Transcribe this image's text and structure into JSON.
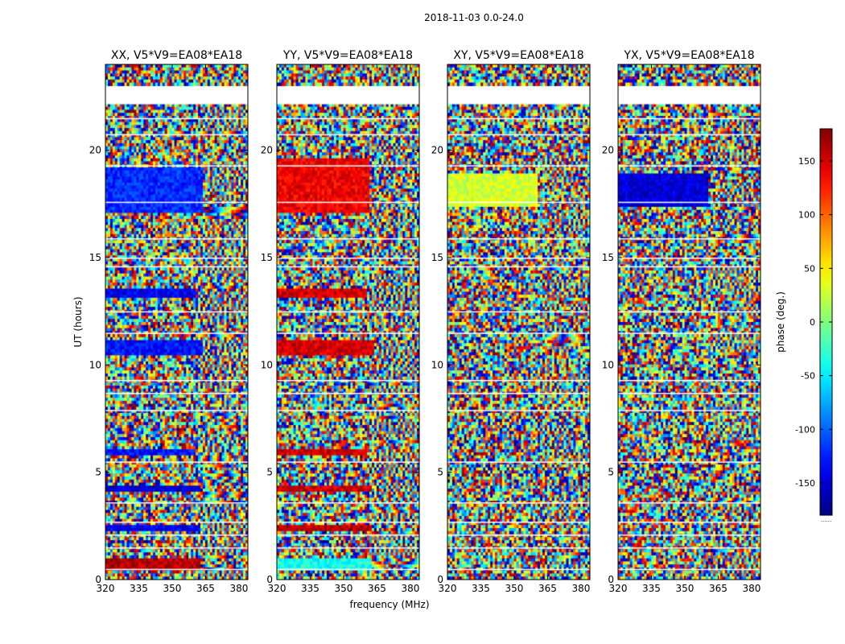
{
  "suptitle": "2018-11-03 0.0-24.0",
  "chart_data": {
    "type": "heatmap",
    "description_values": "phase (deg.) vs frequency and UT",
    "xlabel": "frequency (MHz)",
    "ylabel": "UT (hours)",
    "xlim": [
      320,
      384
    ],
    "ylim": [
      0,
      24
    ],
    "xticks": [
      320,
      335,
      350,
      365,
      380
    ],
    "yticks": [
      0,
      5,
      10,
      15,
      20
    ],
    "panels": [
      {
        "title": "XX, V5*V9=EA08*EA18",
        "pol": "XX",
        "noise": 0.35,
        "band": 0.55,
        "blocks": [
          {
            "t0": 17.1,
            "t1": 19.2,
            "f1": 364,
            "phase": -120
          },
          {
            "t0": 13.2,
            "t1": 13.6,
            "f1": 360,
            "phase": -140
          },
          {
            "t0": 10.5,
            "t1": 11.2,
            "f1": 364,
            "phase": -130
          },
          {
            "t0": 5.8,
            "t1": 6.0,
            "f1": 360,
            "phase": -130
          },
          {
            "t0": 4.1,
            "t1": 4.4,
            "f1": 363,
            "phase": -150
          },
          {
            "t0": 2.3,
            "t1": 2.6,
            "f1": 363,
            "phase": -140
          },
          {
            "t0": 0.4,
            "t1": 1.0,
            "f1": 363,
            "phase": 160
          }
        ]
      },
      {
        "title": "YY, V5*V9=EA08*EA18",
        "pol": "YY",
        "noise": 0.35,
        "band": 0.55,
        "blocks": [
          {
            "t0": 17.1,
            "t1": 19.6,
            "f1": 362,
            "phase": 140
          },
          {
            "t0": 13.1,
            "t1": 13.6,
            "f1": 360,
            "phase": 150
          },
          {
            "t0": 10.5,
            "t1": 11.2,
            "f1": 364,
            "phase": 150
          },
          {
            "t0": 5.8,
            "t1": 6.0,
            "f1": 360,
            "phase": 150
          },
          {
            "t0": 4.1,
            "t1": 4.4,
            "f1": 363,
            "phase": 150
          },
          {
            "t0": 2.3,
            "t1": 2.6,
            "f1": 363,
            "phase": 160
          },
          {
            "t0": 0.4,
            "t1": 1.0,
            "f1": 363,
            "phase": -40
          }
        ]
      },
      {
        "title": "XY, V5*V9=EA08*EA18",
        "pol": "XY",
        "noise": 0.7,
        "band": 0.5,
        "blocks": [
          {
            "t0": 17.4,
            "t1": 18.9,
            "f1": 360,
            "phase": 30
          }
        ]
      },
      {
        "title": "YX, V5*V9=EA08*EA18",
        "pol": "YX",
        "noise": 0.7,
        "band": 0.5,
        "blocks": [
          {
            "t0": 17.4,
            "t1": 18.9,
            "f1": 360,
            "phase": -150
          }
        ]
      }
    ],
    "gaps_hours": [
      22.2,
      21.5,
      20.75,
      19.3,
      17.6,
      15.9,
      15.0,
      14.6,
      12.5,
      11.5,
      9.3,
      8.7,
      7.9,
      5.5,
      3.6,
      2.7,
      2.1,
      1.5,
      0.5
    ],
    "colorbar": {
      "label": "phase (deg.)",
      "min": -180,
      "max": 180,
      "ticks": [
        150,
        100,
        50,
        0,
        -50,
        -100,
        -150
      ],
      "bottom_label": "......"
    }
  }
}
